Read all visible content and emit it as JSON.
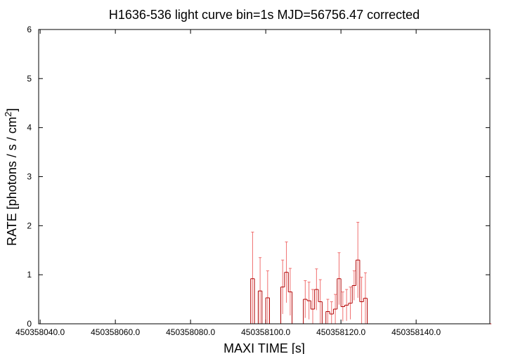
{
  "chart_data": {
    "type": "step",
    "title": "H1636-536 light curve bin=1s MJD=56756.47 corrected",
    "xlabel": "MAXI TIME [s]",
    "ylabel": [
      "RATE [photons / s / cm",
      "2",
      "]"
    ],
    "xlim": [
      450358039.6,
      450358159.6
    ],
    "xticks": [
      {
        "value": 450358040,
        "label": "450358040.0"
      },
      {
        "value": 450358060,
        "label": "450358060.0"
      },
      {
        "value": 450358080,
        "label": "450358080.0"
      },
      {
        "value": 450358100,
        "label": "450358100.0"
      },
      {
        "value": 450358120,
        "label": "450358120.0"
      },
      {
        "value": 450358140,
        "label": "450358140.0"
      }
    ],
    "ylim": [
      0,
      6
    ],
    "yticks": [
      0,
      1,
      2,
      3,
      4,
      5,
      6
    ],
    "color": "#b00000",
    "error_color": "#f07070",
    "x": [
      450358040,
      450358041,
      450358042,
      450358043,
      450358044,
      450358045,
      450358046,
      450358047,
      450358048,
      450358049,
      450358050,
      450358051,
      450358052,
      450358053,
      450358054,
      450358055,
      450358056,
      450358057,
      450358058,
      450358059,
      450358060,
      450358061,
      450358062,
      450358063,
      450358064,
      450358065,
      450358066,
      450358067,
      450358068,
      450358069,
      450358070,
      450358071,
      450358072,
      450358073,
      450358074,
      450358075,
      450358076,
      450358077,
      450358078,
      450358079,
      450358080,
      450358081,
      450358082,
      450358083,
      450358084,
      450358085,
      450358086,
      450358087,
      450358088,
      450358089,
      450358090,
      450358091,
      450358092,
      450358093,
      450358094,
      450358095,
      450358096,
      450358097,
      450358098,
      450358099,
      450358100,
      450358101,
      450358102,
      450358103,
      450358104,
      450358105,
      450358106,
      450358107,
      450358108,
      450358109,
      450358110,
      450358111,
      450358112,
      450358113,
      450358114,
      450358115,
      450358116,
      450358117,
      450358118,
      450358119,
      450358120,
      450358121,
      450358122,
      450358123,
      450358124,
      450358125,
      450358126,
      450358127,
      450358128,
      450358129,
      450358130,
      450358131,
      450358132,
      450358133,
      450358134,
      450358135,
      450358136,
      450358137,
      450358138,
      450358139,
      450358140,
      450358141,
      450358142,
      450358143,
      450358144,
      450358145,
      450358146,
      450358147,
      450358148,
      450358149,
      450358150,
      450358151,
      450358152,
      450358153,
      450358154,
      450358155,
      450358156,
      450358157,
      450358158,
      450358159
    ],
    "values": [
      0,
      0,
      0,
      0,
      0,
      0,
      0,
      0,
      0,
      0,
      0,
      0,
      0,
      0,
      0,
      0,
      0,
      0,
      0,
      0,
      0,
      0,
      0,
      0,
      0,
      0,
      0,
      0,
      0,
      0,
      0,
      0,
      0,
      0,
      0,
      0,
      0,
      0,
      0,
      0,
      0,
      0,
      0,
      0,
      0,
      0,
      0,
      0,
      0,
      0,
      0,
      0,
      0,
      0,
      0,
      0,
      0.92,
      0,
      0.67,
      0,
      0.53,
      0,
      0,
      0,
      0.75,
      1.05,
      0.65,
      0,
      0,
      0,
      0.5,
      0.47,
      0.3,
      0.7,
      0.45,
      0,
      0.25,
      0.2,
      0.3,
      0.92,
      0.35,
      0.38,
      0.42,
      0.78,
      1.3,
      0.45,
      0.52,
      0,
      0,
      0,
      0,
      0,
      0,
      0,
      0,
      0,
      0,
      0,
      0,
      0,
      0,
      0,
      0,
      0,
      0,
      0,
      0,
      0,
      0,
      0,
      0,
      0,
      0,
      0,
      0,
      0,
      0,
      0,
      0,
      0
    ],
    "errors": [
      0,
      0,
      0,
      0,
      0,
      0,
      0,
      0,
      0,
      0,
      0,
      0,
      0,
      0,
      0,
      0,
      0,
      0,
      0,
      0,
      0,
      0,
      0,
      0,
      0,
      0,
      0,
      0,
      0,
      0,
      0,
      0,
      0,
      0,
      0,
      0,
      0,
      0,
      0,
      0,
      0,
      0,
      0,
      0,
      0,
      0,
      0,
      0,
      0,
      0,
      0,
      0,
      0,
      0,
      0,
      0,
      0.95,
      0,
      0.68,
      0,
      0.55,
      0,
      0,
      0,
      0.55,
      0.62,
      0.48,
      0,
      0,
      0,
      0.38,
      0.38,
      0.4,
      0.42,
      0.45,
      0,
      0.25,
      0.25,
      0.3,
      0.53,
      0.3,
      0.32,
      0.33,
      0.3,
      0.77,
      0.5,
      0.52,
      0,
      0,
      0,
      0,
      0,
      0,
      0,
      0,
      0,
      0,
      0,
      0,
      0,
      0,
      0,
      0,
      0,
      0,
      0,
      0,
      0,
      0,
      0,
      0,
      0,
      0,
      0,
      0,
      0,
      0,
      0,
      0,
      0
    ]
  }
}
